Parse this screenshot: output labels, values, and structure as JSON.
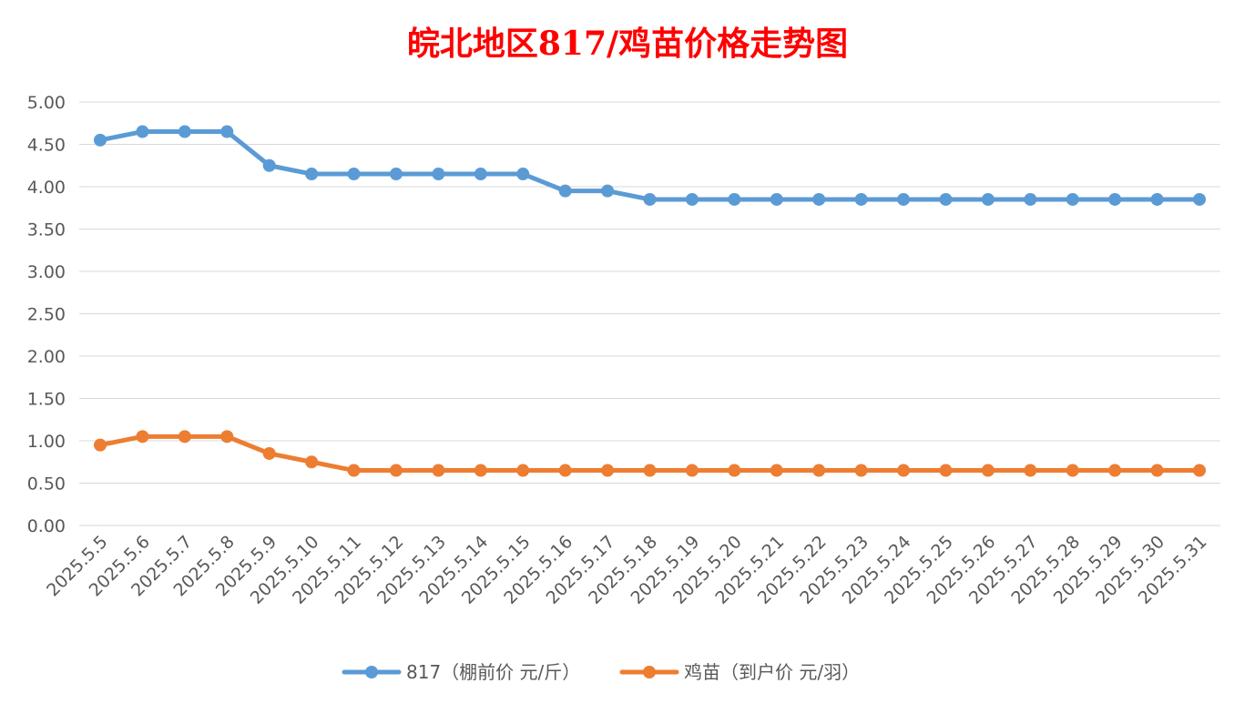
{
  "chart_data": {
    "type": "line",
    "title": "皖北地区817/鸡苗价格走势图",
    "xlabel": "",
    "ylabel": "",
    "ylim": [
      0,
      5
    ],
    "y_ticks": [
      "0.00",
      "0.50",
      "1.00",
      "1.50",
      "2.00",
      "2.50",
      "3.00",
      "3.50",
      "4.00",
      "4.50",
      "5.00"
    ],
    "grid": true,
    "legend_position": "bottom",
    "categories": [
      "2025.5.5",
      "2025.5.6",
      "2025.5.7",
      "2025.5.8",
      "2025.5.9",
      "2025.5.10",
      "2025.5.11",
      "2025.5.12",
      "2025.5.13",
      "2025.5.14",
      "2025.5.15",
      "2025.5.16",
      "2025.5.17",
      "2025.5.18",
      "2025.5.19",
      "2025.5.20",
      "2025.5.21",
      "2025.5.22",
      "2025.5.23",
      "2025.5.24",
      "2025.5.25",
      "2025.5.26",
      "2025.5.27",
      "2025.5.28",
      "2025.5.29",
      "2025.5.30",
      "2025.5.31"
    ],
    "series": [
      {
        "name": "817（棚前价 元/斤）",
        "color": "#5b9bd5",
        "values": [
          4.55,
          4.65,
          4.65,
          4.65,
          4.25,
          4.15,
          4.15,
          4.15,
          4.15,
          4.15,
          4.15,
          3.95,
          3.95,
          3.85,
          3.85,
          3.85,
          3.85,
          3.85,
          3.85,
          3.85,
          3.85,
          3.85,
          3.85,
          3.85,
          3.85,
          3.85,
          3.85
        ]
      },
      {
        "name": "鸡苗（到户价 元/羽）",
        "color": "#ed7d31",
        "values": [
          0.95,
          1.05,
          1.05,
          1.05,
          0.85,
          0.75,
          0.65,
          0.65,
          0.65,
          0.65,
          0.65,
          0.65,
          0.65,
          0.65,
          0.65,
          0.65,
          0.65,
          0.65,
          0.65,
          0.65,
          0.65,
          0.65,
          0.65,
          0.65,
          0.65,
          0.65,
          0.65
        ]
      }
    ]
  }
}
